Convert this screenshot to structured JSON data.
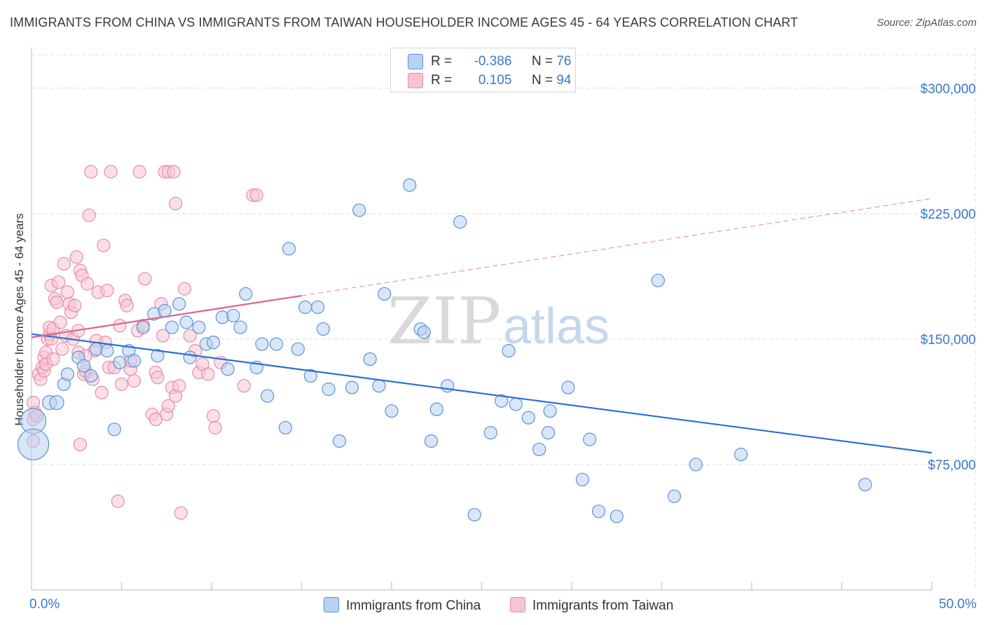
{
  "title": "IMMIGRANTS FROM CHINA VS IMMIGRANTS FROM TAIWAN HOUSEHOLDER INCOME AGES 45 - 64 YEARS CORRELATION CHART",
  "source": "Source: ZipAtlas.com",
  "watermark": {
    "zip": "ZIP",
    "atlas": "atlas"
  },
  "legend": {
    "china": {
      "r_label": "R =",
      "r_value": "-0.386",
      "n_label": "N =",
      "n_value": "76"
    },
    "taiwan": {
      "r_label": "R =",
      "r_value": "0.105",
      "n_label": "N =",
      "n_value": "94"
    }
  },
  "colors": {
    "china": "#5b93d9",
    "china_fill": "#b8d2f1",
    "china_line": "#2b6fd1",
    "taiwan": "#e98aa9",
    "taiwan_fill": "#f7c4d4",
    "taiwan_line": "#e0628d",
    "grid": "#dcdcdc",
    "axis_label": "#3a78c9"
  },
  "chart_data": {
    "type": "scatter",
    "title": "IMMIGRANTS FROM CHINA VS IMMIGRANTS FROM TAIWAN HOUSEHOLDER INCOME AGES 45 - 64 YEARS CORRELATION CHART",
    "xlabel": "",
    "ylabel": "Householder Income Ages 45 - 64 years",
    "xlim": [
      0,
      50
    ],
    "ylim": [
      0,
      320000
    ],
    "x_tick_labels": [
      "0.0%",
      "50.0%"
    ],
    "y_ticks": [
      75000,
      150000,
      225000,
      300000
    ],
    "y_tick_labels": [
      "$75,000",
      "$150,000",
      "$225,000",
      "$300,000"
    ],
    "grid": true,
    "legend_position": "top-center",
    "series": [
      {
        "name": "Immigrants from China",
        "trend": {
          "x": [
            0,
            50
          ],
          "y": [
            153000,
            82000
          ],
          "solid_to": 50
        },
        "points": [
          [
            0.1,
            101000,
            18
          ],
          [
            0.1,
            87000,
            22
          ],
          [
            1.0,
            112000,
            10
          ],
          [
            1.4,
            112000,
            10
          ],
          [
            1.8,
            123000,
            9
          ],
          [
            2.0,
            129000,
            9
          ],
          [
            2.6,
            139000,
            9
          ],
          [
            2.9,
            134000,
            9
          ],
          [
            3.3,
            128000,
            9
          ],
          [
            3.6,
            144000,
            9
          ],
          [
            4.2,
            143000,
            9
          ],
          [
            4.6,
            96000,
            9
          ],
          [
            4.9,
            136000,
            9
          ],
          [
            5.4,
            143000,
            9
          ],
          [
            5.7,
            137000,
            9
          ],
          [
            6.2,
            157000,
            9
          ],
          [
            6.8,
            165000,
            9
          ],
          [
            7.0,
            140000,
            9
          ],
          [
            7.4,
            167000,
            9
          ],
          [
            7.8,
            157000,
            9
          ],
          [
            8.2,
            171000,
            9
          ],
          [
            8.6,
            160000,
            9
          ],
          [
            8.8,
            139000,
            9
          ],
          [
            9.3,
            157000,
            9
          ],
          [
            9.7,
            147000,
            9
          ],
          [
            10.1,
            148000,
            9
          ],
          [
            10.6,
            163000,
            9
          ],
          [
            10.9,
            132000,
            9
          ],
          [
            11.2,
            164000,
            9
          ],
          [
            11.6,
            157000,
            9
          ],
          [
            11.9,
            177000,
            9
          ],
          [
            12.5,
            133000,
            9
          ],
          [
            12.8,
            147000,
            9
          ],
          [
            13.1,
            116000,
            9
          ],
          [
            13.6,
            147000,
            9
          ],
          [
            14.1,
            97000,
            9
          ],
          [
            14.3,
            204000,
            9
          ],
          [
            14.8,
            144000,
            9
          ],
          [
            15.2,
            169000,
            9
          ],
          [
            15.5,
            128000,
            9
          ],
          [
            15.9,
            169000,
            9
          ],
          [
            16.2,
            156000,
            9
          ],
          [
            16.5,
            120000,
            9
          ],
          [
            17.1,
            89000,
            9
          ],
          [
            17.8,
            121000,
            9
          ],
          [
            18.2,
            227000,
            9
          ],
          [
            18.8,
            138000,
            9
          ],
          [
            19.3,
            122000,
            9
          ],
          [
            19.6,
            177000,
            9
          ],
          [
            20.0,
            107000,
            9
          ],
          [
            21.0,
            242000,
            9
          ],
          [
            21.6,
            156000,
            9
          ],
          [
            21.8,
            154000,
            9
          ],
          [
            22.2,
            89000,
            9
          ],
          [
            22.5,
            108000,
            9
          ],
          [
            23.1,
            122000,
            9
          ],
          [
            23.8,
            220000,
            9
          ],
          [
            24.6,
            45000,
            9
          ],
          [
            25.5,
            94000,
            9
          ],
          [
            26.1,
            113000,
            9
          ],
          [
            26.5,
            143000,
            9
          ],
          [
            26.9,
            111000,
            9
          ],
          [
            27.6,
            103000,
            9
          ],
          [
            28.2,
            84000,
            9
          ],
          [
            28.7,
            94000,
            9
          ],
          [
            28.8,
            107000,
            9
          ],
          [
            29.8,
            121000,
            9
          ],
          [
            30.6,
            66000,
            9
          ],
          [
            31.0,
            90000,
            9
          ],
          [
            31.5,
            47000,
            9
          ],
          [
            32.5,
            44000,
            9
          ],
          [
            34.8,
            185000,
            9
          ],
          [
            35.7,
            56000,
            9
          ],
          [
            36.9,
            75000,
            9
          ],
          [
            39.4,
            81000,
            9
          ],
          [
            46.3,
            63000,
            9
          ]
        ]
      },
      {
        "name": "Immigrants from Taiwan",
        "trend": {
          "x": [
            0,
            50
          ],
          "y": [
            151000,
            234000
          ],
          "solid_to": 15
        },
        "points": [
          [
            0.1,
            112000,
            9
          ],
          [
            0.1,
            102000,
            9
          ],
          [
            0.1,
            89000,
            9
          ],
          [
            0.2,
            106000,
            9
          ],
          [
            0.3,
            104000,
            9
          ],
          [
            0.4,
            129000,
            9
          ],
          [
            0.5,
            126000,
            9
          ],
          [
            0.6,
            133000,
            9
          ],
          [
            0.7,
            131000,
            9
          ],
          [
            0.7,
            139000,
            9
          ],
          [
            0.8,
            135000,
            9
          ],
          [
            0.8,
            142000,
            9
          ],
          [
            0.9,
            150000,
            9
          ],
          [
            1.0,
            153000,
            9
          ],
          [
            1.0,
            157000,
            9
          ],
          [
            1.1,
            150000,
            9
          ],
          [
            1.1,
            182000,
            9
          ],
          [
            1.2,
            156000,
            9
          ],
          [
            1.2,
            138000,
            9
          ],
          [
            1.3,
            174000,
            9
          ],
          [
            1.4,
            172000,
            9
          ],
          [
            1.5,
            184000,
            9
          ],
          [
            1.6,
            160000,
            9
          ],
          [
            1.7,
            144000,
            9
          ],
          [
            1.8,
            195000,
            9
          ],
          [
            1.9,
            152000,
            9
          ],
          [
            2.0,
            178000,
            9
          ],
          [
            2.1,
            171000,
            9
          ],
          [
            2.2,
            166000,
            9
          ],
          [
            2.3,
            150000,
            9
          ],
          [
            2.4,
            170000,
            9
          ],
          [
            2.5,
            199000,
            9
          ],
          [
            2.6,
            155000,
            9
          ],
          [
            2.6,
            142000,
            9
          ],
          [
            2.7,
            191000,
            9
          ],
          [
            2.8,
            188000,
            9
          ],
          [
            2.9,
            129000,
            9
          ],
          [
            3.0,
            131000,
            9
          ],
          [
            3.1,
            183000,
            9
          ],
          [
            3.2,
            224000,
            9
          ],
          [
            3.3,
            250000,
            9
          ],
          [
            3.4,
            126000,
            9
          ],
          [
            3.5,
            143000,
            9
          ],
          [
            3.6,
            149000,
            9
          ],
          [
            3.7,
            178000,
            9
          ],
          [
            3.9,
            118000,
            9
          ],
          [
            4.0,
            206000,
            9
          ],
          [
            4.1,
            148000,
            9
          ],
          [
            4.2,
            179000,
            9
          ],
          [
            4.3,
            133000,
            9
          ],
          [
            4.4,
            250000,
            9
          ],
          [
            4.6,
            133000,
            9
          ],
          [
            4.8,
            53000,
            9
          ],
          [
            4.9,
            158000,
            9
          ],
          [
            5.0,
            123000,
            9
          ],
          [
            5.2,
            173000,
            9
          ],
          [
            5.3,
            170000,
            9
          ],
          [
            5.5,
            132000,
            9
          ],
          [
            5.7,
            125000,
            9
          ],
          [
            5.9,
            155000,
            9
          ],
          [
            6.0,
            250000,
            9
          ],
          [
            6.2,
            158000,
            9
          ],
          [
            6.3,
            186000,
            9
          ],
          [
            6.7,
            105000,
            9
          ],
          [
            6.9,
            130000,
            9
          ],
          [
            6.9,
            102000,
            9
          ],
          [
            7.0,
            127000,
            9
          ],
          [
            7.2,
            171000,
            9
          ],
          [
            7.4,
            250000,
            9
          ],
          [
            7.5,
            105000,
            9
          ],
          [
            7.6,
            250000,
            9
          ],
          [
            7.6,
            110000,
            9
          ],
          [
            7.8,
            121000,
            9
          ],
          [
            7.9,
            250000,
            9
          ],
          [
            8.0,
            116000,
            9
          ],
          [
            8.0,
            231000,
            9
          ],
          [
            8.2,
            122000,
            9
          ],
          [
            8.3,
            46000,
            9
          ],
          [
            8.5,
            180000,
            9
          ],
          [
            8.8,
            152000,
            9
          ],
          [
            9.1,
            143000,
            9
          ],
          [
            9.3,
            130000,
            9
          ],
          [
            9.5,
            135000,
            9
          ],
          [
            9.8,
            129000,
            9
          ],
          [
            10.1,
            104000,
            9
          ],
          [
            10.2,
            97000,
            9
          ],
          [
            10.5,
            136000,
            9
          ],
          [
            11.8,
            122000,
            9
          ],
          [
            12.3,
            236000,
            9
          ],
          [
            12.5,
            236000,
            9
          ],
          [
            2.7,
            87000,
            9
          ],
          [
            3.0,
            140000,
            9
          ],
          [
            5.5,
            137000,
            9
          ],
          [
            7.3,
            152000,
            9
          ]
        ]
      }
    ]
  },
  "bottom_legend": {
    "china": "Immigrants from China",
    "taiwan": "Immigrants from Taiwan"
  }
}
